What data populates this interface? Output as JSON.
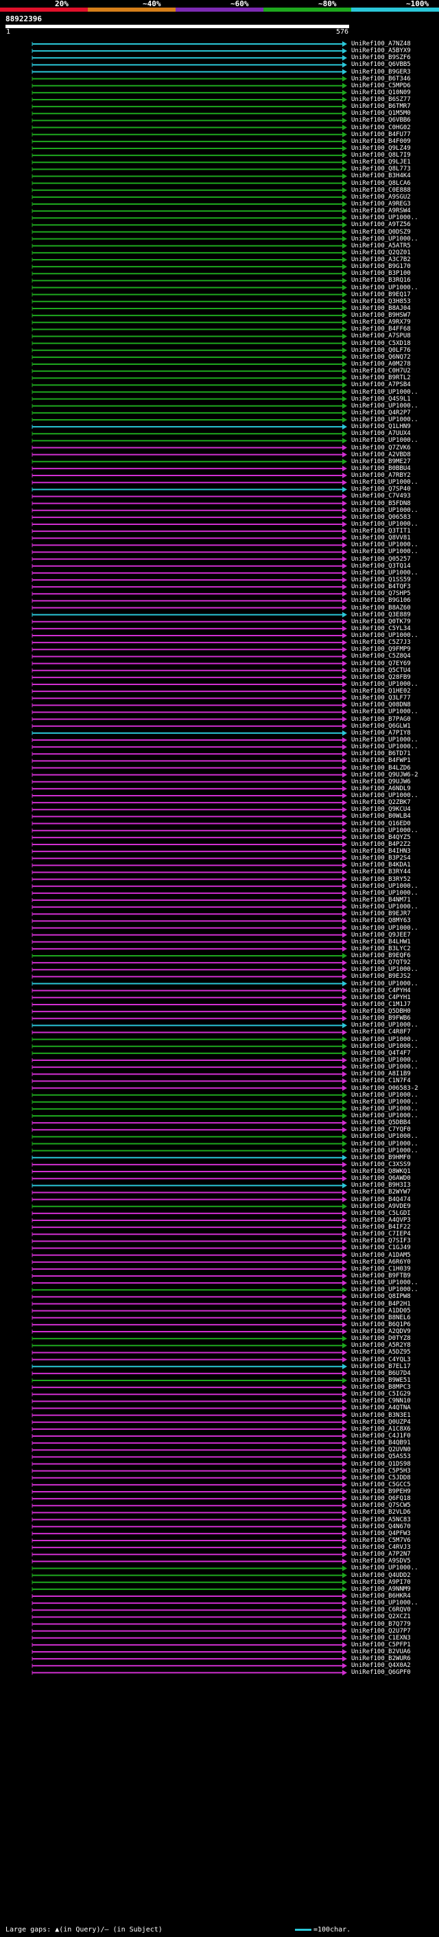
{
  "scale": {
    "labels": [
      "20%",
      "~40%",
      "~60%",
      "~80%",
      "~100%"
    ],
    "colors": [
      "#e0102a",
      "#d57f1a",
      "#7d2bb3",
      "#1ea81e",
      "#2bc7d8"
    ]
  },
  "query": {
    "id": "88922396",
    "start": "1",
    "end": "576"
  },
  "colors": {
    "cyan": "#2bc7d8",
    "green": "#1ea81e",
    "magenta": "#d12fd1",
    "gap": "#1e6b1e"
  },
  "hits": [
    [
      "UniRef100_A7NZ48",
      "cyan",
      1,
      576
    ],
    [
      "UniRef100_A5BYX9",
      "cyan",
      1,
      576
    ],
    [
      "UniRef100_B9SZF6",
      "cyan",
      1,
      576
    ],
    [
      "UniRef100_Q6VBB5",
      "cyan",
      1,
      576
    ],
    [
      "UniRef100_B9GER3",
      "cyan",
      1,
      576
    ],
    [
      "UniRef100_B6T346",
      "green",
      1,
      576
    ],
    [
      "UniRef100_C5MPD6",
      "green",
      1,
      576
    ],
    [
      "UniRef100_Q10N09",
      "green",
      1,
      576
    ],
    [
      "UniRef100_B6SZ77",
      "green",
      1,
      576
    ],
    [
      "UniRef100_B6TMR7",
      "green",
      1,
      576
    ],
    [
      "UniRef100_Q1M5M0",
      "green",
      1,
      576
    ],
    [
      "UniRef100_Q6VBB6",
      "green",
      1,
      576
    ],
    [
      "UniRef100_C0HG02",
      "green",
      1,
      576
    ],
    [
      "UniRef100_B4FU77",
      "green",
      1,
      576
    ],
    [
      "UniRef100_B4F009",
      "green",
      1,
      576
    ],
    [
      "UniRef100_Q9LZ49",
      "green",
      1,
      576
    ],
    [
      "UniRef100_Q8L7I9",
      "green",
      1,
      576
    ],
    [
      "UniRef100_Q9LJE1",
      "green",
      1,
      576
    ],
    [
      "UniRef100_Q8L773",
      "green",
      1,
      576
    ],
    [
      "UniRef100_B3H4K4",
      "green",
      1,
      576
    ],
    [
      "UniRef100_Q8LCA6",
      "green",
      1,
      576
    ],
    [
      "UniRef100_C0E888",
      "green",
      1,
      576
    ],
    [
      "UniRef100_A9SGU2",
      "green",
      1,
      576
    ],
    [
      "UniRef100_A9REG3",
      "green",
      1,
      576
    ],
    [
      "UniRef100_A9RSW4",
      "green",
      1,
      576
    ],
    [
      "UniRef100_UP1000..",
      "green",
      1,
      576
    ],
    [
      "UniRef100_A9TZ56",
      "green",
      1,
      576
    ],
    [
      "UniRef100_Q0DSZ9",
      "green",
      1,
      576
    ],
    [
      "UniRef100_UP1000..",
      "green",
      1,
      576
    ],
    [
      "UniRef100_A5ATR5",
      "green",
      1,
      576
    ],
    [
      "UniRef100_Q2QZ01",
      "green",
      1,
      576
    ],
    [
      "UniRef100_A3C7B2",
      "green",
      1,
      576
    ],
    [
      "UniRef100_B9G170",
      "green",
      1,
      576
    ],
    [
      "UniRef100_B3P100",
      "green",
      1,
      576
    ],
    [
      "UniRef100_B3RQ16",
      "green",
      1,
      576
    ],
    [
      "UniRef100_UP1000..",
      "green",
      1,
      576
    ],
    [
      "UniRef100_B9EQ17",
      "green",
      1,
      576
    ],
    [
      "UniRef100_Q3H853",
      "green",
      1,
      576
    ],
    [
      "UniRef100_B8AJ04",
      "green",
      1,
      576
    ],
    [
      "UniRef100_B9HSW7",
      "green",
      1,
      576
    ],
    [
      "UniRef100_A9RX79",
      "green",
      1,
      576
    ],
    [
      "UniRef100_B4FF68",
      "green",
      1,
      576
    ],
    [
      "UniRef100_A7SPU8",
      "green",
      1,
      576
    ],
    [
      "UniRef100_C5XD18",
      "green",
      1,
      576
    ],
    [
      "UniRef100_Q0LF76",
      "green",
      1,
      576
    ],
    [
      "UniRef100_Q6NQ72",
      "green",
      1,
      576
    ],
    [
      "UniRef100_A0M278",
      "green",
      1,
      576
    ],
    [
      "UniRef100_C0H7U2",
      "green",
      1,
      576
    ],
    [
      "UniRef100_B9RTL2",
      "green",
      1,
      576
    ],
    [
      "UniRef100_A7PSB4",
      "green",
      1,
      576
    ],
    [
      "UniRef100_UP1000..",
      "green",
      1,
      576
    ],
    [
      "UniRef100_Q4S9L1",
      "green",
      1,
      576
    ],
    [
      "UniRef100_UP1000..",
      "green",
      1,
      576
    ],
    [
      "UniRef100_Q4R2P7",
      "green",
      1,
      576
    ],
    [
      "UniRef100_UP1000..",
      "green",
      1,
      576
    ],
    [
      "UniRef100_Q1LHN9",
      "cyan",
      1,
      576
    ],
    [
      "UniRef100_A7UUX4",
      "green",
      1,
      576
    ],
    [
      "UniRef100_UP1000..",
      "green",
      1,
      576
    ],
    [
      "UniRef100_Q7ZVK6",
      "magenta",
      1,
      576
    ],
    [
      "UniRef100_A2VBD8",
      "magenta",
      1,
      576
    ],
    [
      "UniRef100_B9ME27",
      "green",
      1,
      576
    ],
    [
      "UniRef100_B0BBU4",
      "magenta",
      1,
      576
    ],
    [
      "UniRef100_A7RBY2",
      "magenta",
      1,
      576
    ],
    [
      "UniRef100_UP1000..",
      "magenta",
      1,
      576
    ],
    [
      "UniRef100_Q7SP40",
      "cyan",
      1,
      576
    ],
    [
      "UniRef100_C7V493",
      "magenta",
      1,
      576
    ],
    [
      "UniRef100_B5FDN8",
      "magenta",
      1,
      576
    ],
    [
      "UniRef100_UP1000..",
      "magenta",
      1,
      576
    ],
    [
      "UniRef100_Q06583",
      "magenta",
      1,
      576
    ],
    [
      "UniRef100_UP1000..",
      "magenta",
      1,
      576
    ],
    [
      "UniRef100_Q3TIT1",
      "magenta",
      1,
      576
    ],
    [
      "UniRef100_Q8VV81",
      "magenta",
      1,
      576
    ],
    [
      "UniRef100_UP1000..",
      "magenta",
      1,
      576
    ],
    [
      "UniRef100_UP1000..",
      "magenta",
      1,
      576
    ],
    [
      "UniRef100_Q05257",
      "magenta",
      1,
      576
    ],
    [
      "UniRef100_Q3TQ14",
      "magenta",
      1,
      576
    ],
    [
      "UniRef100_UP1000..",
      "magenta",
      1,
      576
    ],
    [
      "UniRef100_Q1SS59",
      "magenta",
      1,
      576
    ],
    [
      "UniRef100_B4TQF3",
      "magenta",
      1,
      576
    ],
    [
      "UniRef100_Q7SHP5",
      "magenta",
      1,
      576
    ],
    [
      "UniRef100_B9G106",
      "magenta",
      1,
      576
    ],
    [
      "UniRef100_B8AZ60",
      "magenta",
      1,
      576
    ],
    [
      "UniRef100_Q3E889",
      "cyan",
      1,
      576
    ],
    [
      "UniRef100_Q0TK79",
      "magenta",
      1,
      576
    ],
    [
      "UniRef100_C5YL34",
      "magenta",
      1,
      576
    ],
    [
      "UniRef100_UP1000..",
      "magenta",
      1,
      576
    ],
    [
      "UniRef100_C5Z7J3",
      "magenta",
      1,
      576
    ],
    [
      "UniRef100_Q9FMP9",
      "magenta",
      1,
      576
    ],
    [
      "UniRef100_C5Z8Q4",
      "magenta",
      1,
      576
    ],
    [
      "UniRef100_Q7EY69",
      "magenta",
      1,
      576
    ],
    [
      "UniRef100_Q5CTU4",
      "magenta",
      1,
      576
    ],
    [
      "UniRef100_Q28FB9",
      "magenta",
      1,
      576
    ],
    [
      "UniRef100_UP1000..",
      "magenta",
      1,
      576
    ],
    [
      "UniRef100_Q1HE02",
      "magenta",
      1,
      576
    ],
    [
      "UniRef100_Q3LF77",
      "magenta",
      1,
      576
    ],
    [
      "UniRef100_Q08DN8",
      "magenta",
      1,
      576
    ],
    [
      "UniRef100_UP1000..",
      "magenta",
      1,
      576
    ],
    [
      "UniRef100_B7PAG0",
      "magenta",
      1,
      576
    ],
    [
      "UniRef100_Q6GLW1",
      "magenta",
      1,
      576
    ],
    [
      "UniRef100_A7PIY8",
      "cyan",
      1,
      576
    ],
    [
      "UniRef100_UP1000..",
      "magenta",
      1,
      576
    ],
    [
      "UniRef100_UP1000..",
      "magenta",
      1,
      576
    ],
    [
      "UniRef100_B6TD71",
      "magenta",
      1,
      576
    ],
    [
      "UniRef100_B4FWP1",
      "magenta",
      1,
      576
    ],
    [
      "UniRef100_B4LZD6",
      "magenta",
      1,
      576
    ],
    [
      "UniRef100_Q9UJW6-2",
      "magenta",
      1,
      576
    ],
    [
      "UniRef100_Q9UJW6",
      "magenta",
      1,
      576
    ],
    [
      "UniRef100_A6NDL9",
      "magenta",
      1,
      576
    ],
    [
      "UniRef100_UP1000..",
      "magenta",
      1,
      576
    ],
    [
      "UniRef100_Q2ZBK7",
      "magenta",
      1,
      576
    ],
    [
      "UniRef100_Q9KCU4",
      "magenta",
      1,
      576
    ],
    [
      "UniRef100_B0WLB4",
      "magenta",
      1,
      576
    ],
    [
      "UniRef100_Q16ED0",
      "magenta",
      1,
      576
    ],
    [
      "UniRef100_UP1000..",
      "magenta",
      1,
      576
    ],
    [
      "UniRef100_B4QYZ5",
      "magenta",
      1,
      576
    ],
    [
      "UniRef100_B4P2Z2",
      "magenta",
      1,
      576
    ],
    [
      "UniRef100_B4IHN3",
      "magenta",
      1,
      576
    ],
    [
      "UniRef100_B3P2S4",
      "magenta",
      1,
      576
    ],
    [
      "UniRef100_B4KDA1",
      "magenta",
      1,
      576
    ],
    [
      "UniRef100_B3RY44",
      "magenta",
      1,
      576
    ],
    [
      "UniRef100_B3RY52",
      "magenta",
      1,
      576
    ],
    [
      "UniRef100_UP1000..",
      "magenta",
      1,
      576
    ],
    [
      "UniRef100_UP1000..",
      "magenta",
      1,
      576
    ],
    [
      "UniRef100_B4NM71",
      "magenta",
      1,
      576
    ],
    [
      "UniRef100_UP1000..",
      "magenta",
      1,
      576
    ],
    [
      "UniRef100_B9EJR7",
      "magenta",
      1,
      576
    ],
    [
      "UniRef100_Q8MY63",
      "magenta",
      1,
      576
    ],
    [
      "UniRef100_UP1000..",
      "magenta",
      1,
      576
    ],
    [
      "UniRef100_Q9JEE7",
      "magenta",
      1,
      576
    ],
    [
      "UniRef100_B4LHW1",
      "magenta",
      1,
      576
    ],
    [
      "UniRef100_B3LYC2",
      "magenta",
      1,
      576
    ],
    [
      "UniRef100_B9EQF6",
      "green",
      1,
      576
    ],
    [
      "UniRef100_Q7QT92",
      "magenta",
      1,
      576
    ],
    [
      "UniRef100_UP1000..",
      "magenta",
      1,
      576
    ],
    [
      "UniRef100_B9EJS2",
      "magenta",
      1,
      576
    ],
    [
      "UniRef100_UP1000..",
      "cyan",
      1,
      576
    ],
    [
      "UniRef100_C4PYH4",
      "magenta",
      1,
      576
    ],
    [
      "UniRef100_C4PYH1",
      "magenta",
      1,
      576
    ],
    [
      "UniRef100_C1M1J7",
      "magenta",
      1,
      576
    ],
    [
      "UniRef100_Q5DBH0",
      "magenta",
      1,
      576
    ],
    [
      "UniRef100_B9FWB6",
      "magenta",
      1,
      576
    ],
    [
      "UniRef100_UP1000..",
      "cyan",
      1,
      576
    ],
    [
      "UniRef100_C4R8F7",
      "magenta",
      1,
      576
    ],
    [
      "UniRef100_UP1000..",
      "green",
      1,
      576
    ],
    [
      "UniRef100_UP1000..",
      "green",
      1,
      576
    ],
    [
      "UniRef100_Q4T4F7",
      "green",
      1,
      576
    ],
    [
      "UniRef100_UP1000..",
      "magenta",
      1,
      576
    ],
    [
      "UniRef100_UP1000..",
      "magenta",
      1,
      576
    ],
    [
      "UniRef100_A8I1B9",
      "magenta",
      1,
      576
    ],
    [
      "UniRef100_C1N7F4",
      "magenta",
      1,
      576
    ],
    [
      "UniRef100_O06583-2",
      "magenta",
      1,
      576
    ],
    [
      "UniRef100_UP1000..",
      "green",
      1,
      576
    ],
    [
      "UniRef100_UP1000..",
      "green",
      1,
      576
    ],
    [
      "UniRef100_UP1000..",
      "green",
      1,
      576
    ],
    [
      "UniRef100_UP1000..",
      "green",
      1,
      576
    ],
    [
      "UniRef100_Q5DBB4",
      "magenta",
      1,
      576
    ],
    [
      "UniRef100_C7YQF0",
      "magenta",
      1,
      576
    ],
    [
      "UniRef100_UP1000..",
      "green",
      1,
      576
    ],
    [
      "UniRef100_UP1000..",
      "green",
      1,
      576
    ],
    [
      "UniRef100_UP1000..",
      "green",
      1,
      576
    ],
    [
      "UniRef100_B9HMF0",
      "cyan",
      1,
      576
    ],
    [
      "UniRef100_C3XSS9",
      "magenta",
      1,
      576
    ],
    [
      "UniRef100_Q8WKQ1",
      "magenta",
      1,
      576
    ],
    [
      "UniRef100_Q6AWD0",
      "magenta",
      1,
      576
    ],
    [
      "UniRef100_B9H3I3",
      "cyan",
      1,
      576
    ],
    [
      "UniRef100_B2WYW7",
      "magenta",
      1,
      576
    ],
    [
      "UniRef100_B4Q474",
      "magenta",
      1,
      576
    ],
    [
      "UniRef100_A9VDE9",
      "green",
      1,
      576
    ],
    [
      "UniRef100_C5LGDI",
      "magenta",
      1,
      576
    ],
    [
      "UniRef100_A4QVP3",
      "magenta",
      1,
      576
    ],
    [
      "UniRef100_B4IF22",
      "magenta",
      1,
      576
    ],
    [
      "UniRef100_C7IEP4",
      "magenta",
      1,
      576
    ],
    [
      "UniRef100_Q7SIF3",
      "magenta",
      1,
      576
    ],
    [
      "UniRef100_C1GJ49",
      "magenta",
      1,
      576
    ],
    [
      "UniRef100_A1DAM5",
      "magenta",
      1,
      576
    ],
    [
      "UniRef100_A6R6Y0",
      "magenta",
      1,
      576
    ],
    [
      "UniRef100_C1H039",
      "magenta",
      1,
      576
    ],
    [
      "UniRef100_B9FTB9",
      "magenta",
      1,
      576
    ],
    [
      "UniRef100_UP1000..",
      "magenta",
      1,
      576
    ],
    [
      "UniRef100_UP1000..",
      "green",
      1,
      576
    ],
    [
      "UniRef100_Q8IPW8",
      "magenta",
      1,
      576
    ],
    [
      "UniRef100_B4P2H1",
      "magenta",
      1,
      576
    ],
    [
      "UniRef100_A1DD05",
      "magenta",
      1,
      576
    ],
    [
      "UniRef100_B8NEL6",
      "magenta",
      1,
      576
    ],
    [
      "UniRef100_B6Q1P6",
      "magenta",
      1,
      576
    ],
    [
      "UniRef100_A2QDV9",
      "magenta",
      1,
      576
    ],
    [
      "UniRef100_D0TYZ8",
      "green",
      1,
      576
    ],
    [
      "UniRef100_A5R2Y8",
      "green",
      1,
      576
    ],
    [
      "UniRef100_A5DZ95",
      "magenta",
      1,
      576
    ],
    [
      "UniRef100_C4YQL3",
      "magenta",
      1,
      576
    ],
    [
      "UniRef100_B7EL17",
      "cyan",
      1,
      576
    ],
    [
      "UniRef100_B6U7D4",
      "magenta",
      1,
      576
    ],
    [
      "UniRef100_B9WE51",
      "green",
      1,
      576
    ],
    [
      "UniRef100_B8MPC3",
      "magenta",
      1,
      576
    ],
    [
      "UniRef100_C5IG29",
      "magenta",
      1,
      576
    ],
    [
      "UniRef100_C9NN10",
      "magenta",
      1,
      576
    ],
    [
      "UniRef100_A4QTNA",
      "magenta",
      1,
      576
    ],
    [
      "UniRef100_B3N3E1",
      "magenta",
      1,
      576
    ],
    [
      "UniRef100_Q0UZP4",
      "magenta",
      1,
      576
    ],
    [
      "UniRef100_A1C8X6",
      "magenta",
      1,
      576
    ],
    [
      "UniRef100_C4J1F0",
      "magenta",
      1,
      576
    ],
    [
      "UniRef100_B4QB91",
      "magenta",
      1,
      576
    ],
    [
      "UniRef100_Q2UVN0",
      "magenta",
      1,
      576
    ],
    [
      "UniRef100_Q5AS53",
      "magenta",
      1,
      576
    ],
    [
      "UniRef100_Q1DS98",
      "magenta",
      1,
      576
    ],
    [
      "UniRef100_C5P5H3",
      "magenta",
      1,
      576
    ],
    [
      "UniRef100_C5JDD8",
      "magenta",
      1,
      576
    ],
    [
      "UniRef100_C5GCC5",
      "magenta",
      1,
      576
    ],
    [
      "UniRef100_B9PEH9",
      "magenta",
      1,
      576
    ],
    [
      "UniRef100_Q6FQ18",
      "magenta",
      1,
      576
    ],
    [
      "UniRef100_Q7SCW5",
      "magenta",
      1,
      576
    ],
    [
      "UniRef100_B2VLD6",
      "magenta",
      1,
      576
    ],
    [
      "UniRef100_A5NC83",
      "magenta",
      1,
      576
    ],
    [
      "UniRef100_Q4N670",
      "magenta",
      1,
      576
    ],
    [
      "UniRef100_Q4PFW3",
      "magenta",
      1,
      576
    ],
    [
      "UniRef100_C5M7V6",
      "magenta",
      1,
      576
    ],
    [
      "UniRef100_C4RVJ3",
      "magenta",
      1,
      576
    ],
    [
      "UniRef100_A7P2N7",
      "magenta",
      1,
      576
    ],
    [
      "UniRef100_A9SDV5",
      "magenta",
      1,
      576
    ],
    [
      "UniRef100_UP1000..",
      "green",
      1,
      576
    ],
    [
      "UniRef100_Q4UDD2",
      "green",
      1,
      576
    ],
    [
      "UniRef100_A9PI70",
      "green",
      1,
      576
    ],
    [
      "UniRef100_A9NNM9",
      "green",
      1,
      576
    ],
    [
      "UniRef100_B6HKR4",
      "magenta",
      1,
      576
    ],
    [
      "UniRef100_UP1000..",
      "magenta",
      1,
      576
    ],
    [
      "UniRef100_C6RQV0",
      "magenta",
      1,
      576
    ],
    [
      "UniRef100_Q2XCZ1",
      "magenta",
      1,
      576
    ],
    [
      "UniRef100_B7Q779",
      "magenta",
      1,
      576
    ],
    [
      "UniRef100_Q2U7P7",
      "magenta",
      1,
      576
    ],
    [
      "UniRef100_C1EXN3",
      "magenta",
      1,
      576
    ],
    [
      "UniRef100_C5PFP1",
      "magenta",
      1,
      576
    ],
    [
      "UniRef100_B2VUA6",
      "magenta",
      1,
      576
    ],
    [
      "UniRef100_B2WUR6",
      "magenta",
      1,
      576
    ],
    [
      "UniRef100_Q4X0A2",
      "magenta",
      1,
      576
    ],
    [
      "UniRef100_Q6GPF0",
      "magenta",
      1,
      576
    ]
  ],
  "footer": {
    "gaps_text": "Large gaps: ▲(in Query)/— (in Subject)",
    "legend_text": "=100char."
  }
}
